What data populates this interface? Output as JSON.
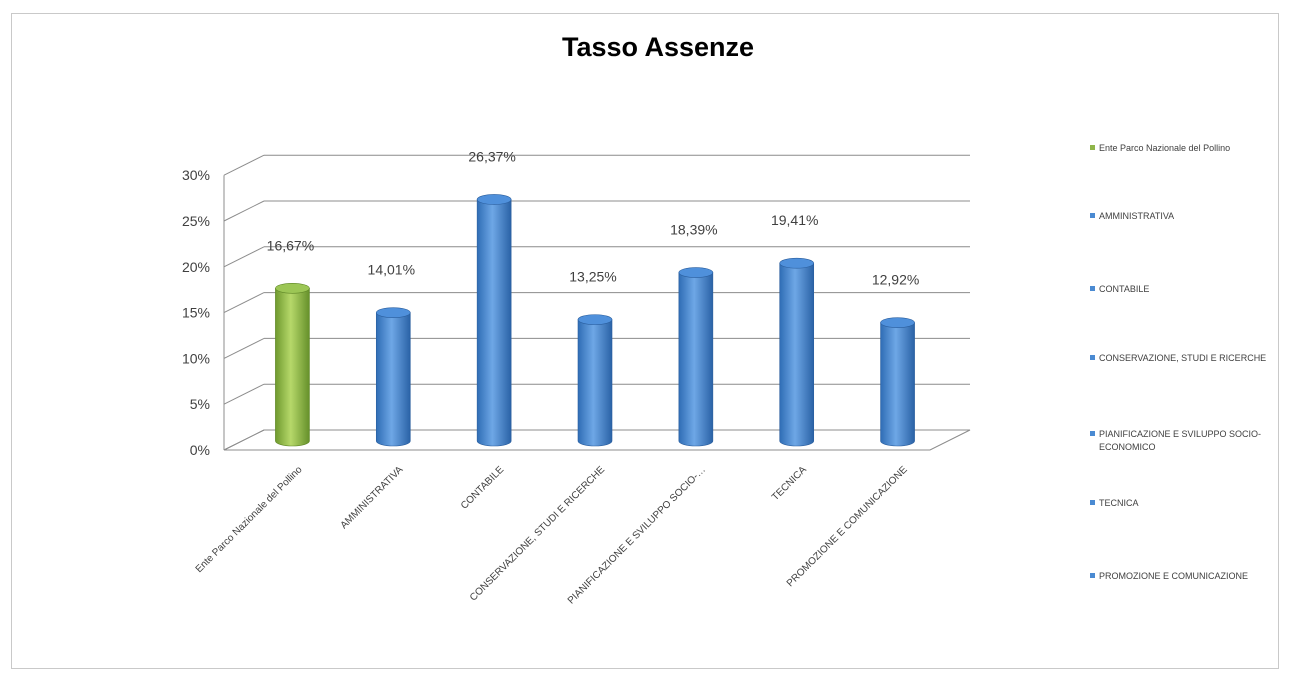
{
  "chart_data": {
    "type": "bar",
    "title": "Tasso Assenze",
    "categories": [
      "Ente Parco Nazionale del Pollino",
      "AMMINISTRATIVA",
      "CONTABILE",
      "CONSERVAZIONE, STUDI E RICERCHE",
      "PIANIFICAZIONE E SVILUPPO SOCIO-…",
      "TECNICA",
      "PROMOZIONE E COMUNICAZIONE"
    ],
    "values": [
      16.67,
      14.01,
      26.37,
      13.25,
      18.39,
      19.41,
      12.92
    ],
    "data_labels": [
      "16,67%",
      "14,01%",
      "26,37%",
      "13,25%",
      "18,39%",
      "19,41%",
      "12,92%"
    ],
    "ylim": [
      0,
      30
    ],
    "yticks": [
      "0%",
      "5%",
      "10%",
      "15%",
      "20%",
      "25%",
      "30%"
    ],
    "grid": true,
    "legend_position": "right",
    "legend": [
      "Ente Parco Nazionale del Pollino",
      "AMMINISTRATIVA",
      "CONTABILE",
      "CONSERVAZIONE, STUDI E RICERCHE",
      "PIANIFICAZIONE E SVILUPPO SOCIO-ECONOMICO",
      "TECNICA",
      "PROMOZIONE E COMUNICAZIONE"
    ],
    "colors": [
      "#8fb54a",
      "#4a8ad2",
      "#4a8ad2",
      "#4a8ad2",
      "#4a8ad2",
      "#4a8ad2",
      "#4a8ad2"
    ]
  }
}
